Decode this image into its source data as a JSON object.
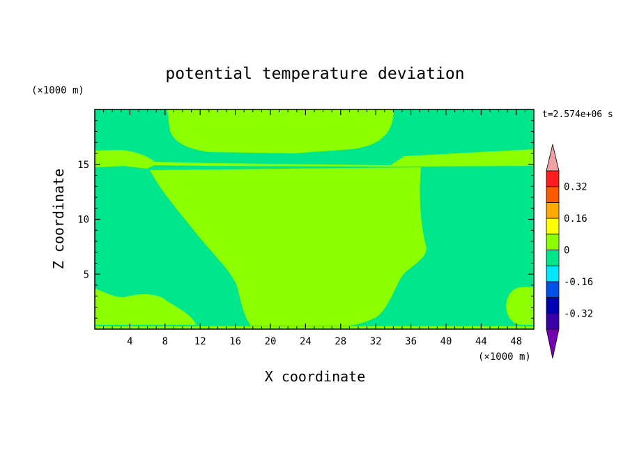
{
  "chart_data": {
    "type": "heatmap",
    "subtype": "filled-contour",
    "title": "potential temperature deviation",
    "xlabel": "X coordinate",
    "ylabel": "Z coordinate",
    "x_unit": "(×1000 m)",
    "y_unit": "(×1000 m)",
    "time_label": "t=2.574e+06 s",
    "xlim": [
      0,
      50
    ],
    "ylim": [
      0,
      20
    ],
    "x_ticks": [
      4,
      8,
      12,
      16,
      20,
      24,
      28,
      32,
      36,
      40,
      44,
      48
    ],
    "y_ticks": [
      5,
      10,
      15
    ],
    "colorbar": {
      "levels": [
        -0.4,
        -0.32,
        -0.24,
        -0.16,
        -0.08,
        0,
        0.08,
        0.16,
        0.24,
        0.32,
        0.4
      ],
      "tick_labels": [
        "0.32",
        "0.16",
        "0",
        "-0.16",
        "-0.32"
      ],
      "tick_values": [
        0.32,
        0.16,
        0,
        -0.16,
        -0.32
      ],
      "colors_bottom_to_top": [
        "#3a00a8",
        "#0000b4",
        "#0050e6",
        "#00e6ff",
        "#00e68c",
        "#8cff00",
        "#ffff00",
        "#ffaa00",
        "#ff5a00",
        "#ff1e1e"
      ],
      "under_color": "#7800b4",
      "over_color": "#f0a0a0",
      "extend": "both"
    },
    "regions": [
      {
        "level_range": [
          -0.08,
          0
        ],
        "color": "#00e68c",
        "note": "background field"
      },
      {
        "level_range": [
          0,
          0.08
        ],
        "color": "#8cff00",
        "note": "central column x≈6–38, z≈0–15"
      },
      {
        "level_range": [
          0,
          0.08
        ],
        "color": "#8cff00",
        "note": "upper lobe x≈8–34, z≈16–20"
      },
      {
        "level_range": [
          0,
          0.08
        ],
        "color": "#8cff00",
        "note": "thin bands near z≈15–16"
      },
      {
        "level_range": [
          0,
          0.08
        ],
        "color": "#8cff00",
        "note": "lower-left patch x≈0–10, z≈0–4"
      },
      {
        "level_range": [
          0,
          0.08
        ],
        "color": "#8cff00",
        "note": "lower-right patch x≈47–50, z≈0–4"
      }
    ]
  }
}
